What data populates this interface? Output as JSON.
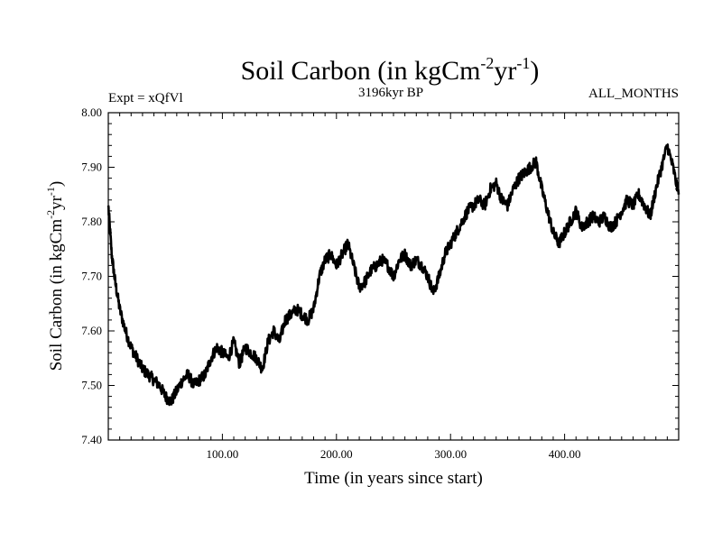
{
  "chart_data": {
    "type": "line",
    "title": {
      "main": "Soil Carbon (in kgCm",
      "sup1": "-2",
      "mid": "yr",
      "sup2": "-1",
      "end": ")"
    },
    "header": {
      "left": "Expt = xQfVl",
      "center": "3196kyr BP",
      "right": "ALL_MONTHS"
    },
    "xlabel": "Time (in years since start)",
    "ylabel": {
      "main": "Soil Carbon (in kgCm",
      "sup1": "-2",
      "mid": "yr",
      "sup2": "-1",
      "end": ")"
    },
    "xlim": [
      0,
      500
    ],
    "ylim": [
      7.4,
      8.0
    ],
    "x_ticks": [
      100,
      200,
      300,
      400
    ],
    "x_tick_labels": [
      "100.00",
      "200.00",
      "300.00",
      "400.00"
    ],
    "y_ticks": [
      7.4,
      7.5,
      7.6,
      7.7,
      7.8,
      7.9,
      8.0
    ],
    "y_tick_labels": [
      "7.40",
      "7.50",
      "7.60",
      "7.70",
      "7.80",
      "7.90",
      "8.00"
    ],
    "series": [
      {
        "name": "Soil Carbon",
        "color": "#000000",
        "x": [
          0,
          3,
          6,
          10,
          15,
          20,
          25,
          30,
          35,
          40,
          45,
          50,
          55,
          60,
          65,
          70,
          75,
          80,
          85,
          90,
          95,
          100,
          105,
          110,
          115,
          120,
          125,
          130,
          135,
          140,
          145,
          150,
          155,
          160,
          165,
          170,
          175,
          180,
          185,
          190,
          195,
          200,
          205,
          210,
          215,
          220,
          225,
          230,
          235,
          240,
          245,
          250,
          255,
          260,
          265,
          270,
          275,
          280,
          285,
          290,
          295,
          300,
          305,
          310,
          315,
          320,
          325,
          330,
          335,
          340,
          345,
          350,
          355,
          360,
          365,
          370,
          375,
          380,
          385,
          390,
          395,
          400,
          405,
          410,
          415,
          420,
          425,
          430,
          435,
          440,
          445,
          450,
          455,
          460,
          465,
          470,
          475,
          480,
          485,
          490,
          495,
          500
        ],
        "values": [
          7.83,
          7.74,
          7.69,
          7.64,
          7.6,
          7.57,
          7.55,
          7.53,
          7.52,
          7.51,
          7.5,
          7.48,
          7.47,
          7.49,
          7.51,
          7.52,
          7.5,
          7.51,
          7.52,
          7.55,
          7.57,
          7.56,
          7.55,
          7.58,
          7.54,
          7.57,
          7.56,
          7.55,
          7.53,
          7.58,
          7.6,
          7.58,
          7.62,
          7.63,
          7.64,
          7.63,
          7.62,
          7.64,
          7.7,
          7.73,
          7.74,
          7.72,
          7.74,
          7.76,
          7.72,
          7.68,
          7.69,
          7.71,
          7.72,
          7.73,
          7.72,
          7.7,
          7.73,
          7.74,
          7.72,
          7.73,
          7.72,
          7.7,
          7.67,
          7.7,
          7.74,
          7.76,
          7.78,
          7.8,
          7.82,
          7.83,
          7.84,
          7.83,
          7.86,
          7.87,
          7.84,
          7.83,
          7.86,
          7.88,
          7.89,
          7.9,
          7.91,
          7.86,
          7.82,
          7.78,
          7.76,
          7.78,
          7.8,
          7.82,
          7.79,
          7.8,
          7.81,
          7.8,
          7.81,
          7.79,
          7.8,
          7.82,
          7.84,
          7.83,
          7.85,
          7.83,
          7.81,
          7.86,
          7.9,
          7.94,
          7.9,
          7.85
        ]
      }
    ]
  }
}
